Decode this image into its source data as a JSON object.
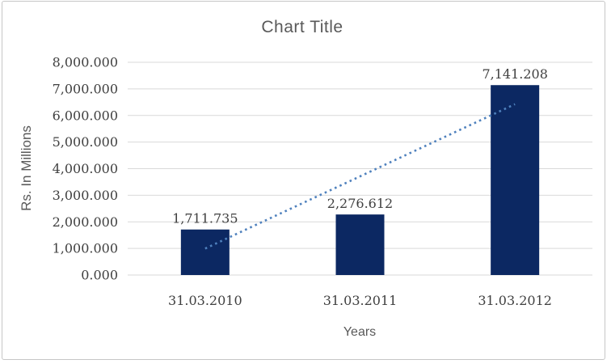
{
  "frame": {
    "background_color": "#ffffff",
    "border_color": "#c6c6c6"
  },
  "chart_data": {
    "type": "bar",
    "title": "Chart Title",
    "xlabel": "Years",
    "ylabel": "Rs. In Millions",
    "categories": [
      "31.03.2010",
      "31.03.2011",
      "31.03.2012"
    ],
    "values": [
      1711.735,
      2276.612,
      7141.208
    ],
    "value_labels": [
      "1,711.735",
      "2,276.612",
      "7,141.208"
    ],
    "ylim": [
      0,
      8000
    ],
    "ytick_step": 1000,
    "ytick_labels": [
      "0.000",
      "1,000.000",
      "2,000.000",
      "3,000.000",
      "4,000.000",
      "5,000.000",
      "6,000.000",
      "7,000.000",
      "8,000.000"
    ],
    "grid": true,
    "legend": "none",
    "bar_color": "#0c2862",
    "gridline_color": "#d9d9d9",
    "label_color": "#404040",
    "title_color": "#595959",
    "trendline": {
      "type": "linear",
      "style": "dotted",
      "color": "#4f81bd"
    }
  }
}
